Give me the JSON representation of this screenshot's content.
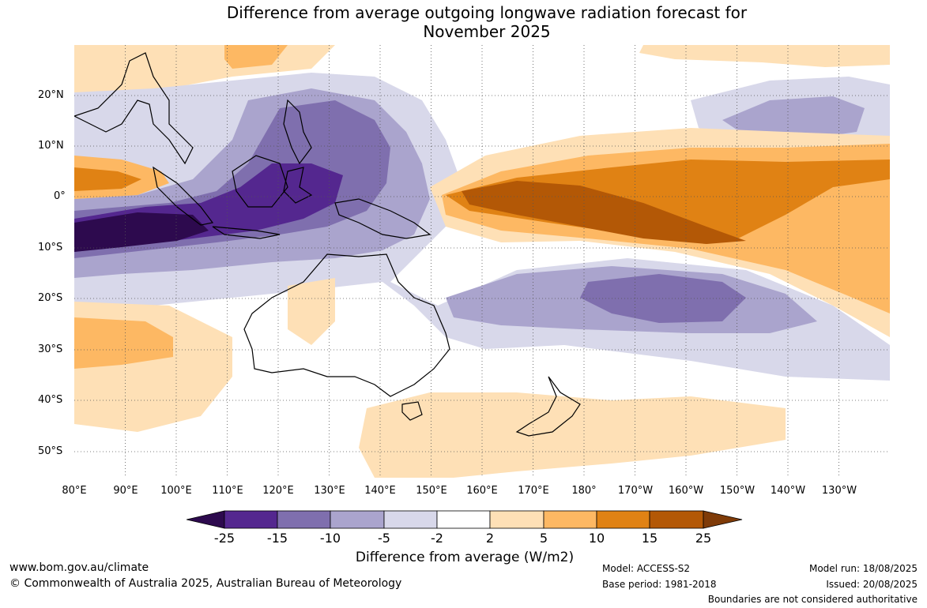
{
  "title": {
    "line1": "Difference from average outgoing longwave radiation forecast for",
    "line2": "November 2025"
  },
  "map": {
    "lat_labels": [
      "20°N",
      "10°N",
      "0°",
      "10°S",
      "20°S",
      "30°S",
      "40°S",
      "50°S"
    ],
    "lon_labels": [
      "80°E",
      "90°E",
      "100°E",
      "110°E",
      "120°E",
      "130°E",
      "140°E",
      "150°E",
      "160°E",
      "170°E",
      "180°",
      "170°W",
      "160°W",
      "150°W",
      "140°W",
      "130°W"
    ]
  },
  "colorbar": {
    "ticks": [
      "-25",
      "-15",
      "-10",
      "-5",
      "-2",
      "2",
      "5",
      "10",
      "15",
      "25"
    ],
    "colors": {
      "below_-25": "#2d0a4e",
      "-25_-15": "#54278f",
      "-15_-10": "#7f6fae",
      "-10_-5": "#aaa4cd",
      "-5_-2": "#d8d8ea",
      "-2_2": "#ffffff",
      "2_5": "#fee0b6",
      "5_10": "#fdb863",
      "10_15": "#e08214",
      "15_25": "#b35806",
      "above_25": "#7f3b08"
    },
    "label": "Difference from average (W/m2)"
  },
  "footer": {
    "website": "www.bom.gov.au/climate",
    "copyright": "© Commonwealth of Australia 2025, Australian Bureau of Meteorology",
    "model": "Model: ACCESS-S2",
    "base_period": "Base period: 1981-2018",
    "model_run": "Model run: 18/08/2025",
    "issued": "Issued: 20/08/2025",
    "disclaimer": "Boundaries are not considered authoritative"
  }
}
